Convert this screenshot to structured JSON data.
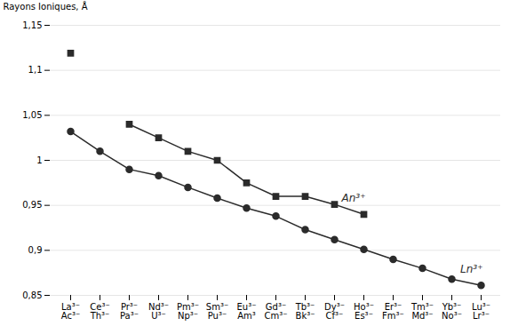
{
  "chart_data": {
    "type": "line",
    "ylabel": "Rayons Ioniques, Å",
    "categories": [
      "La³⁻\nAc³⁻",
      "Ce³⁻\nTh³⁻",
      "Pr³⁻\nPa³⁻",
      "Nd³⁻\nU³⁻",
      "Pm³⁻\nNp³⁻",
      "Sm³⁻\nPu³⁻",
      "Eu³⁻\nAm³",
      "Gd³⁻\nCm³⁻",
      "Tb³⁻\nBk³⁻",
      "Dy³⁻\nCf³⁻",
      "Ho³⁻\nEs³⁻",
      "Er³⁻\nFm³⁻",
      "Tm³⁻\nMd³⁻",
      "Yb³⁻\nNo³⁻",
      "Lu³⁻\nLr³⁻"
    ],
    "series": [
      {
        "name": "Ln³⁺",
        "color": "#2b2b2b",
        "marker": "circle",
        "values": [
          1.032,
          1.01,
          0.99,
          0.983,
          0.97,
          0.958,
          0.947,
          0.938,
          0.923,
          0.912,
          0.901,
          0.89,
          0.88,
          0.868,
          0.861
        ]
      },
      {
        "name": "An³⁺",
        "color": "#2b2b2b",
        "marker": "square",
        "values": [
          1.119,
          null,
          1.04,
          1.025,
          1.01,
          1.0,
          0.975,
          0.96,
          0.96,
          0.951,
          0.94,
          null,
          null,
          null,
          null
        ]
      }
    ],
    "ylim": [
      0.85,
      1.15
    ],
    "yticks": [
      {
        "value": 0.85,
        "label": "0,85"
      },
      {
        "value": 0.9,
        "label": "0,9"
      },
      {
        "value": 0.95,
        "label": "0,95"
      },
      1,
      {
        "value": 1.05,
        "label": "1,05"
      },
      {
        "value": 1.1,
        "label": "1,1"
      },
      {
        "value": 1.15,
        "label": "1,15"
      }
    ],
    "grid": true
  }
}
